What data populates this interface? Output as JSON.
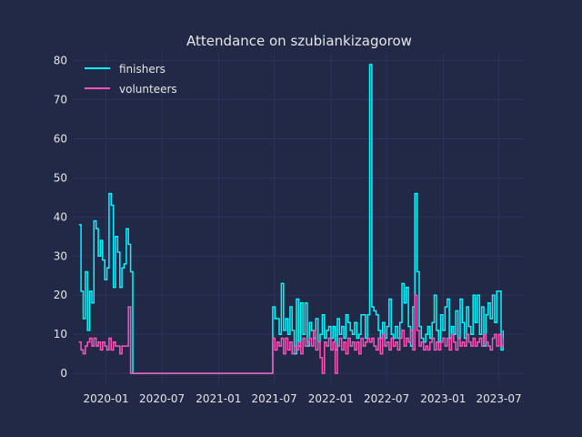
{
  "chart_data": {
    "type": "line",
    "title": "Attendance on szubiankizagorow",
    "xlabel": "",
    "ylabel": "",
    "ylim": [
      -3,
      82
    ],
    "xlim": [
      "2019-09-15",
      "2023-09-20"
    ],
    "y_ticks": [
      0,
      10,
      20,
      30,
      40,
      50,
      60,
      70,
      80
    ],
    "x_ticks": [
      {
        "date": "2020-01-01",
        "label": "2020-01"
      },
      {
        "date": "2020-07-01",
        "label": "2020-07"
      },
      {
        "date": "2021-01-01",
        "label": "2021-01"
      },
      {
        "date": "2021-07-01",
        "label": "2021-07"
      },
      {
        "date": "2022-01-01",
        "label": "2022-01"
      },
      {
        "date": "2022-07-01",
        "label": "2022-07"
      },
      {
        "date": "2023-01-01",
        "label": "2023-01"
      },
      {
        "date": "2023-07-01",
        "label": "2023-07"
      }
    ],
    "grid": true,
    "legend_position": "top-left",
    "series": [
      {
        "name": "finishers",
        "color": "#08F7FE",
        "points": [
          [
            "2019-10-05",
            38
          ],
          [
            "2019-10-12",
            21
          ],
          [
            "2019-10-19",
            14
          ],
          [
            "2019-10-26",
            26
          ],
          [
            "2019-11-02",
            11
          ],
          [
            "2019-11-09",
            21
          ],
          [
            "2019-11-16",
            18
          ],
          [
            "2019-11-23",
            39
          ],
          [
            "2019-11-30",
            37
          ],
          [
            "2019-12-07",
            30
          ],
          [
            "2019-12-14",
            34
          ],
          [
            "2019-12-21",
            29
          ],
          [
            "2019-12-28",
            24
          ],
          [
            "2020-01-04",
            27
          ],
          [
            "2020-01-11",
            46
          ],
          [
            "2020-01-18",
            43
          ],
          [
            "2020-01-25",
            22
          ],
          [
            "2020-02-01",
            35
          ],
          [
            "2020-02-08",
            31
          ],
          [
            "2020-02-15",
            22
          ],
          [
            "2020-02-22",
            27
          ],
          [
            "2020-02-29",
            28
          ],
          [
            "2020-03-07",
            37
          ],
          [
            "2020-03-14",
            33
          ],
          [
            "2020-03-21",
            26
          ],
          [
            "2020-03-28",
            0
          ],
          [
            "2021-06-19",
            0
          ],
          [
            "2021-06-26",
            17
          ],
          [
            "2021-07-03",
            14
          ],
          [
            "2021-07-10",
            14
          ],
          [
            "2021-07-17",
            10
          ],
          [
            "2021-07-24",
            23
          ],
          [
            "2021-07-31",
            11
          ],
          [
            "2021-08-07",
            14
          ],
          [
            "2021-08-14",
            10
          ],
          [
            "2021-08-21",
            17
          ],
          [
            "2021-08-28",
            11
          ],
          [
            "2021-09-04",
            5
          ],
          [
            "2021-09-11",
            19
          ],
          [
            "2021-09-18",
            7
          ],
          [
            "2021-09-25",
            18
          ],
          [
            "2021-10-02",
            10
          ],
          [
            "2021-10-09",
            18
          ],
          [
            "2021-10-16",
            7
          ],
          [
            "2021-10-23",
            13
          ],
          [
            "2021-10-30",
            11
          ],
          [
            "2021-11-06",
            9
          ],
          [
            "2021-11-13",
            14
          ],
          [
            "2021-11-20",
            8
          ],
          [
            "2021-11-27",
            10
          ],
          [
            "2021-12-04",
            15
          ],
          [
            "2021-12-11",
            9
          ],
          [
            "2021-12-18",
            11
          ],
          [
            "2021-12-25",
            12
          ],
          [
            "2022-01-01",
            9
          ],
          [
            "2022-01-08",
            12
          ],
          [
            "2022-01-15",
            6
          ],
          [
            "2022-01-22",
            14
          ],
          [
            "2022-01-29",
            10
          ],
          [
            "2022-02-05",
            12
          ],
          [
            "2022-02-12",
            9
          ],
          [
            "2022-02-19",
            15
          ],
          [
            "2022-02-26",
            13
          ],
          [
            "2022-03-05",
            11
          ],
          [
            "2022-03-12",
            10
          ],
          [
            "2022-03-19",
            13
          ],
          [
            "2022-03-26",
            9
          ],
          [
            "2022-04-02",
            10
          ],
          [
            "2022-04-09",
            15
          ],
          [
            "2022-04-16",
            15
          ],
          [
            "2022-04-23",
            9
          ],
          [
            "2022-04-30",
            15
          ],
          [
            "2022-05-07",
            79
          ],
          [
            "2022-05-14",
            17
          ],
          [
            "2022-05-21",
            16
          ],
          [
            "2022-05-28",
            15
          ],
          [
            "2022-06-04",
            11
          ],
          [
            "2022-06-11",
            9
          ],
          [
            "2022-06-18",
            13
          ],
          [
            "2022-06-25",
            9
          ],
          [
            "2022-07-02",
            12
          ],
          [
            "2022-07-09",
            19
          ],
          [
            "2022-07-16",
            10
          ],
          [
            "2022-07-23",
            9
          ],
          [
            "2022-07-30",
            12
          ],
          [
            "2022-08-06",
            9
          ],
          [
            "2022-08-13",
            13
          ],
          [
            "2022-08-20",
            23
          ],
          [
            "2022-08-27",
            18
          ],
          [
            "2022-09-03",
            22
          ],
          [
            "2022-09-10",
            12
          ],
          [
            "2022-09-17",
            7
          ],
          [
            "2022-09-24",
            17
          ],
          [
            "2022-10-01",
            46
          ],
          [
            "2022-10-08",
            26
          ],
          [
            "2022-10-15",
            12
          ],
          [
            "2022-10-22",
            9
          ],
          [
            "2022-10-29",
            8
          ],
          [
            "2022-11-05",
            10
          ],
          [
            "2022-11-12",
            12
          ],
          [
            "2022-11-19",
            9
          ],
          [
            "2022-11-26",
            13
          ],
          [
            "2022-12-03",
            20
          ],
          [
            "2022-12-10",
            11
          ],
          [
            "2022-12-17",
            8
          ],
          [
            "2022-12-24",
            15
          ],
          [
            "2022-12-31",
            11
          ],
          [
            "2023-01-07",
            17
          ],
          [
            "2023-01-14",
            19
          ],
          [
            "2023-01-21",
            9
          ],
          [
            "2023-01-28",
            12
          ],
          [
            "2023-02-04",
            10
          ],
          [
            "2023-02-11",
            16
          ],
          [
            "2023-02-18",
            9
          ],
          [
            "2023-02-25",
            19
          ],
          [
            "2023-03-04",
            13
          ],
          [
            "2023-03-11",
            9
          ],
          [
            "2023-03-18",
            17
          ],
          [
            "2023-03-25",
            12
          ],
          [
            "2023-04-01",
            10
          ],
          [
            "2023-04-08",
            20
          ],
          [
            "2023-04-15",
            13
          ],
          [
            "2023-04-22",
            20
          ],
          [
            "2023-04-29",
            10
          ],
          [
            "2023-05-06",
            17
          ],
          [
            "2023-05-13",
            7
          ],
          [
            "2023-05-20",
            15
          ],
          [
            "2023-05-27",
            18
          ],
          [
            "2023-06-03",
            14
          ],
          [
            "2023-06-10",
            20
          ],
          [
            "2023-06-17",
            13
          ],
          [
            "2023-06-24",
            21
          ],
          [
            "2023-07-01",
            21
          ],
          [
            "2023-07-08",
            6
          ],
          [
            "2023-07-15",
            11
          ]
        ]
      },
      {
        "name": "volunteers",
        "color": "#FE53BB",
        "points": [
          [
            "2019-10-05",
            8
          ],
          [
            "2019-10-12",
            6
          ],
          [
            "2019-10-19",
            5
          ],
          [
            "2019-10-26",
            7
          ],
          [
            "2019-11-02",
            8
          ],
          [
            "2019-11-09",
            9
          ],
          [
            "2019-11-16",
            7
          ],
          [
            "2019-11-23",
            9
          ],
          [
            "2019-11-30",
            7
          ],
          [
            "2019-12-07",
            8
          ],
          [
            "2019-12-14",
            6
          ],
          [
            "2019-12-21",
            8
          ],
          [
            "2019-12-28",
            7
          ],
          [
            "2020-01-04",
            6
          ],
          [
            "2020-01-11",
            9
          ],
          [
            "2020-01-18",
            6
          ],
          [
            "2020-01-25",
            8
          ],
          [
            "2020-02-01",
            7
          ],
          [
            "2020-02-08",
            7
          ],
          [
            "2020-02-15",
            5
          ],
          [
            "2020-02-22",
            7
          ],
          [
            "2020-02-29",
            7
          ],
          [
            "2020-03-07",
            7
          ],
          [
            "2020-03-14",
            17
          ],
          [
            "2020-03-21",
            0
          ],
          [
            "2021-06-19",
            0
          ],
          [
            "2021-06-26",
            9
          ],
          [
            "2021-07-03",
            6
          ],
          [
            "2021-07-10",
            8
          ],
          [
            "2021-07-17",
            7
          ],
          [
            "2021-07-24",
            9
          ],
          [
            "2021-07-31",
            5
          ],
          [
            "2021-08-07",
            9
          ],
          [
            "2021-08-14",
            6
          ],
          [
            "2021-08-21",
            8
          ],
          [
            "2021-08-28",
            5
          ],
          [
            "2021-09-04",
            7
          ],
          [
            "2021-09-11",
            6
          ],
          [
            "2021-09-18",
            8
          ],
          [
            "2021-09-25",
            5
          ],
          [
            "2021-10-02",
            9
          ],
          [
            "2021-10-09",
            7
          ],
          [
            "2021-10-16",
            8
          ],
          [
            "2021-10-23",
            9
          ],
          [
            "2021-10-30",
            7
          ],
          [
            "2021-11-06",
            11
          ],
          [
            "2021-11-13",
            6
          ],
          [
            "2021-11-20",
            8
          ],
          [
            "2021-11-27",
            4
          ],
          [
            "2021-12-04",
            0
          ],
          [
            "2021-12-11",
            8
          ],
          [
            "2021-12-18",
            7
          ],
          [
            "2021-12-25",
            9
          ],
          [
            "2022-01-01",
            6
          ],
          [
            "2022-01-08",
            8
          ],
          [
            "2022-01-15",
            0
          ],
          [
            "2022-01-22",
            7
          ],
          [
            "2022-01-29",
            9
          ],
          [
            "2022-02-05",
            6
          ],
          [
            "2022-02-12",
            8
          ],
          [
            "2022-02-19",
            5
          ],
          [
            "2022-02-26",
            9
          ],
          [
            "2022-03-05",
            7
          ],
          [
            "2022-03-12",
            8
          ],
          [
            "2022-03-19",
            6
          ],
          [
            "2022-03-26",
            8
          ],
          [
            "2022-04-02",
            5
          ],
          [
            "2022-04-09",
            9
          ],
          [
            "2022-04-16",
            7
          ],
          [
            "2022-04-23",
            8
          ],
          [
            "2022-04-30",
            9
          ],
          [
            "2022-05-07",
            8
          ],
          [
            "2022-05-14",
            9
          ],
          [
            "2022-05-21",
            7
          ],
          [
            "2022-05-28",
            6
          ],
          [
            "2022-06-04",
            9
          ],
          [
            "2022-06-11",
            5
          ],
          [
            "2022-06-18",
            10
          ],
          [
            "2022-06-25",
            7
          ],
          [
            "2022-07-02",
            8
          ],
          [
            "2022-07-09",
            6
          ],
          [
            "2022-07-16",
            9
          ],
          [
            "2022-07-23",
            7
          ],
          [
            "2022-07-30",
            8
          ],
          [
            "2022-08-06",
            6
          ],
          [
            "2022-08-13",
            9
          ],
          [
            "2022-08-20",
            11
          ],
          [
            "2022-08-27",
            7
          ],
          [
            "2022-09-03",
            9
          ],
          [
            "2022-09-10",
            8
          ],
          [
            "2022-09-17",
            11
          ],
          [
            "2022-09-24",
            6
          ],
          [
            "2022-10-01",
            20
          ],
          [
            "2022-10-08",
            11
          ],
          [
            "2022-10-15",
            7
          ],
          [
            "2022-10-22",
            8
          ],
          [
            "2022-10-29",
            6
          ],
          [
            "2022-11-05",
            7
          ],
          [
            "2022-11-12",
            6
          ],
          [
            "2022-11-19",
            8
          ],
          [
            "2022-11-26",
            9
          ],
          [
            "2022-12-03",
            6
          ],
          [
            "2022-12-10",
            8
          ],
          [
            "2022-12-17",
            6
          ],
          [
            "2022-12-24",
            8
          ],
          [
            "2022-12-31",
            9
          ],
          [
            "2023-01-07",
            7
          ],
          [
            "2023-01-14",
            9
          ],
          [
            "2023-01-21",
            6
          ],
          [
            "2023-01-28",
            10
          ],
          [
            "2023-02-04",
            8
          ],
          [
            "2023-02-11",
            6
          ],
          [
            "2023-02-18",
            9
          ],
          [
            "2023-02-25",
            7
          ],
          [
            "2023-03-04",
            8
          ],
          [
            "2023-03-11",
            7
          ],
          [
            "2023-03-18",
            10
          ],
          [
            "2023-03-25",
            8
          ],
          [
            "2023-04-01",
            7
          ],
          [
            "2023-04-08",
            9
          ],
          [
            "2023-04-15",
            7
          ],
          [
            "2023-04-22",
            8
          ],
          [
            "2023-04-29",
            9
          ],
          [
            "2023-05-06",
            7
          ],
          [
            "2023-05-13",
            10
          ],
          [
            "2023-05-20",
            8
          ],
          [
            "2023-05-27",
            7
          ],
          [
            "2023-06-03",
            6
          ],
          [
            "2023-06-10",
            9
          ],
          [
            "2023-06-17",
            10
          ],
          [
            "2023-06-24",
            7
          ],
          [
            "2023-07-01",
            10
          ],
          [
            "2023-07-08",
            7
          ],
          [
            "2023-07-15",
            9
          ]
        ]
      }
    ]
  }
}
